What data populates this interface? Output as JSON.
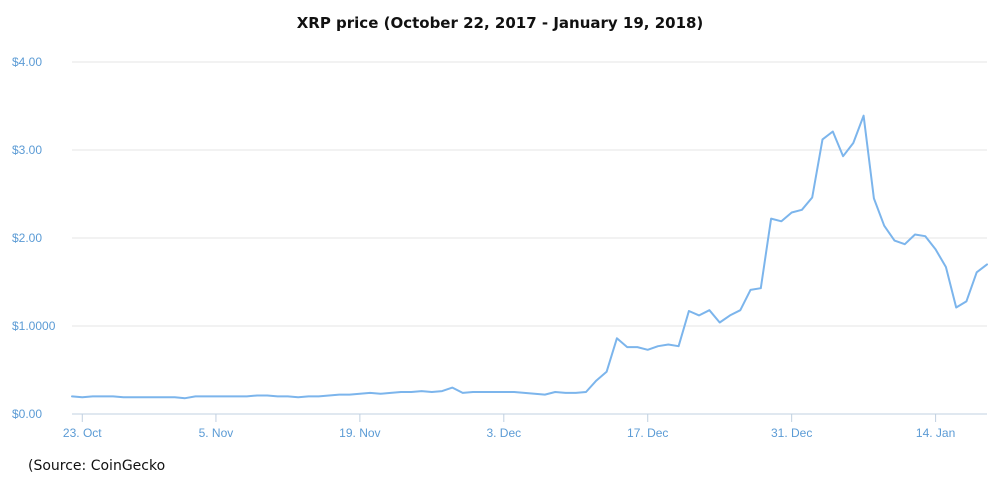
{
  "chart_data": {
    "type": "line",
    "title": "XRP price (October 22, 2017 - January 19, 2018)",
    "xlabel": "",
    "ylabel": "",
    "ylim": [
      0,
      4
    ],
    "yticks": [
      {
        "value": 0,
        "label": "$0.00"
      },
      {
        "value": 1,
        "label": "$1.0000"
      },
      {
        "value": 2,
        "label": "$2.00"
      },
      {
        "value": 3,
        "label": "$3.00"
      },
      {
        "value": 4,
        "label": "$4.00"
      }
    ],
    "x_range": [
      "2017-10-22",
      "2018-01-19"
    ],
    "xticks": [
      {
        "date": "2017-10-23",
        "label": "23. Oct"
      },
      {
        "date": "2017-11-05",
        "label": "5. Nov"
      },
      {
        "date": "2017-11-19",
        "label": "19. Nov"
      },
      {
        "date": "2017-12-03",
        "label": "3. Dec"
      },
      {
        "date": "2017-12-17",
        "label": "17. Dec"
      },
      {
        "date": "2017-12-31",
        "label": "31. Dec"
      },
      {
        "date": "2018-01-14",
        "label": "14. Jan"
      }
    ],
    "grid": true,
    "legend": "none",
    "line_color": "#7cb5ec",
    "series": [
      {
        "x": [
          "2017-10-22",
          "2017-10-23",
          "2017-10-24",
          "2017-10-25",
          "2017-10-26",
          "2017-10-27",
          "2017-10-28",
          "2017-10-29",
          "2017-10-30",
          "2017-10-31",
          "2017-11-01",
          "2017-11-02",
          "2017-11-03",
          "2017-11-04",
          "2017-11-05",
          "2017-11-06",
          "2017-11-07",
          "2017-11-08",
          "2017-11-09",
          "2017-11-10",
          "2017-11-11",
          "2017-11-12",
          "2017-11-13",
          "2017-11-14",
          "2017-11-15",
          "2017-11-16",
          "2017-11-17",
          "2017-11-18",
          "2017-11-19",
          "2017-11-20",
          "2017-11-21",
          "2017-11-22",
          "2017-11-23",
          "2017-11-24",
          "2017-11-25",
          "2017-11-26",
          "2017-11-27",
          "2017-11-28",
          "2017-11-29",
          "2017-11-30",
          "2017-12-01",
          "2017-12-02",
          "2017-12-03",
          "2017-12-04",
          "2017-12-05",
          "2017-12-06",
          "2017-12-07",
          "2017-12-08",
          "2017-12-09",
          "2017-12-10",
          "2017-12-11",
          "2017-12-12",
          "2017-12-13",
          "2017-12-14",
          "2017-12-15",
          "2017-12-16",
          "2017-12-17",
          "2017-12-18",
          "2017-12-19",
          "2017-12-20",
          "2017-12-21",
          "2017-12-22",
          "2017-12-23",
          "2017-12-24",
          "2017-12-25",
          "2017-12-26",
          "2017-12-27",
          "2017-12-28",
          "2017-12-29",
          "2017-12-30",
          "2017-12-31",
          "2018-01-01",
          "2018-01-02",
          "2018-01-03",
          "2018-01-04",
          "2018-01-05",
          "2018-01-06",
          "2018-01-07",
          "2018-01-08",
          "2018-01-09",
          "2018-01-10",
          "2018-01-11",
          "2018-01-12",
          "2018-01-13",
          "2018-01-14",
          "2018-01-15",
          "2018-01-16",
          "2018-01-17",
          "2018-01-18",
          "2018-01-19"
        ],
        "values": [
          0.2,
          0.19,
          0.2,
          0.2,
          0.2,
          0.19,
          0.19,
          0.19,
          0.19,
          0.19,
          0.19,
          0.18,
          0.2,
          0.2,
          0.2,
          0.2,
          0.2,
          0.2,
          0.21,
          0.21,
          0.2,
          0.2,
          0.19,
          0.2,
          0.2,
          0.21,
          0.22,
          0.22,
          0.23,
          0.24,
          0.23,
          0.24,
          0.25,
          0.25,
          0.26,
          0.25,
          0.26,
          0.3,
          0.24,
          0.25,
          0.25,
          0.25,
          0.25,
          0.25,
          0.24,
          0.23,
          0.22,
          0.25,
          0.24,
          0.24,
          0.25,
          0.38,
          0.48,
          0.86,
          0.76,
          0.76,
          0.73,
          0.77,
          0.79,
          0.77,
          1.17,
          1.12,
          1.18,
          1.04,
          1.12,
          1.18,
          1.41,
          1.43,
          2.22,
          2.19,
          2.29,
          2.32,
          2.46,
          3.12,
          3.21,
          2.93,
          3.08,
          3.39,
          2.45,
          2.14,
          1.97,
          1.93,
          2.04,
          2.02,
          1.87,
          1.67,
          1.21,
          1.28,
          1.61,
          1.7
        ]
      }
    ]
  },
  "source": "(Source: CoinGecko"
}
